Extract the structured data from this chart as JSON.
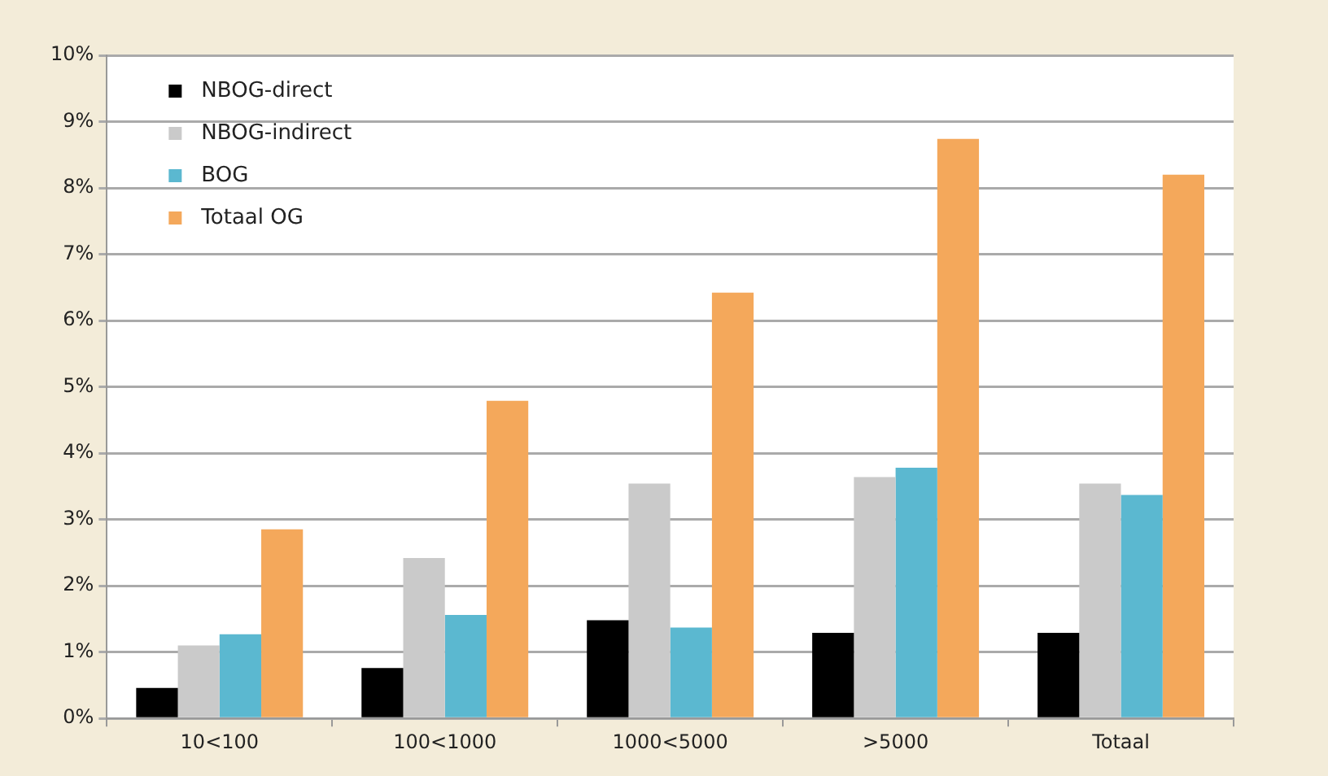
{
  "chart_data": {
    "type": "bar",
    "categories": [
      "10<100",
      "100<1000",
      "1000<5000",
      ">5000",
      "Totaal"
    ],
    "series": [
      {
        "name": "NBOG-direct",
        "color": "#000000",
        "values": [
          0.46,
          0.76,
          1.48,
          1.29,
          1.29
        ]
      },
      {
        "name": "NBOG-indirect",
        "color": "#cacaca",
        "values": [
          1.1,
          2.42,
          3.54,
          3.64,
          3.54
        ]
      },
      {
        "name": "BOG",
        "color": "#5bb8d0",
        "values": [
          1.27,
          1.56,
          1.37,
          3.78,
          3.37
        ]
      },
      {
        "name": "Totaal OG",
        "color": "#f4a85b",
        "values": [
          2.85,
          4.79,
          6.42,
          8.74,
          8.2
        ]
      }
    ],
    "ylim": [
      0,
      10
    ],
    "yticks": [
      {
        "value": 0,
        "label": "0%"
      },
      {
        "value": 1,
        "label": "1%"
      },
      {
        "value": 2,
        "label": "2%"
      },
      {
        "value": 3,
        "label": "3%"
      },
      {
        "value": 4,
        "label": "4%"
      },
      {
        "value": 5,
        "label": "5%"
      },
      {
        "value": 6,
        "label": "6%"
      },
      {
        "value": 7,
        "label": "7%"
      },
      {
        "value": 8,
        "label": "8%"
      },
      {
        "value": 9,
        "label": "9%"
      },
      {
        "value": 10,
        "label": "10%"
      }
    ],
    "grid": "y",
    "legend": "top left"
  }
}
